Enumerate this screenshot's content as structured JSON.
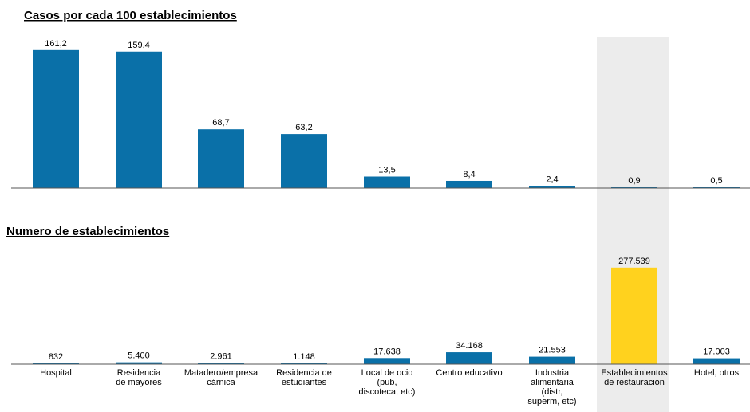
{
  "chart_data": [
    {
      "type": "bar",
      "title": "Casos por cada 100 establecimientos",
      "categories": [
        "Hospital",
        "Residencia de mayores",
        "Matadero/empresa cárnica",
        "Residencia de estudiantes",
        "Local de ocio (pub, discoteca, etc)",
        "Centro educativo",
        "Industria alimentaria (distr, superm, etc)",
        "Establecimientos de restauración",
        "Hotel, otros"
      ],
      "values": [
        161.2,
        159.4,
        68.7,
        63.2,
        13.5,
        8.4,
        2.4,
        0.9,
        0.5
      ],
      "value_labels": [
        "161,2",
        "159,4",
        "68,7",
        "63,2",
        "13,5",
        "8,4",
        "2,4",
        "0,9",
        "0,5"
      ],
      "ylim": [
        0,
        175
      ]
    },
    {
      "type": "bar",
      "title": "Numero de establecimientos",
      "categories": [
        "Hospital",
        "Residencia de mayores",
        "Matadero/empresa cárnica",
        "Residencia de estudiantes",
        "Local de ocio (pub, discoteca, etc)",
        "Centro educativo",
        "Industria alimentaria (distr, superm, etc)",
        "Establecimientos de restauración",
        "Hotel, otros"
      ],
      "values": [
        832,
        5400,
        2961,
        1148,
        17638,
        34168,
        21553,
        277539,
        17003
      ],
      "value_labels": [
        "832",
        "5.400",
        "2.961",
        "1.148",
        "17.638",
        "34.168",
        "21.553",
        "277.539",
        "17.003"
      ],
      "ylim": [
        0,
        300000
      ]
    }
  ],
  "category_lines": [
    [
      "Hospital"
    ],
    [
      "Residencia",
      "de mayores"
    ],
    [
      "Matadero/empresa",
      "cárnica"
    ],
    [
      "Residencia de",
      "estudiantes"
    ],
    [
      "Local de ocio",
      "(pub,",
      "discoteca, etc)"
    ],
    [
      "Centro educativo"
    ],
    [
      "Industria",
      "alimentaria",
      "(distr,",
      "superm, etc)"
    ],
    [
      "Establecimientos",
      "de restauración"
    ],
    [
      "Hotel, otros"
    ]
  ],
  "highlight_category_index": 7,
  "colors": {
    "bar": "#0a70a8",
    "highlight_bar": "#ffd21e",
    "highlight_band": "#ececec",
    "axis": "#555555"
  }
}
